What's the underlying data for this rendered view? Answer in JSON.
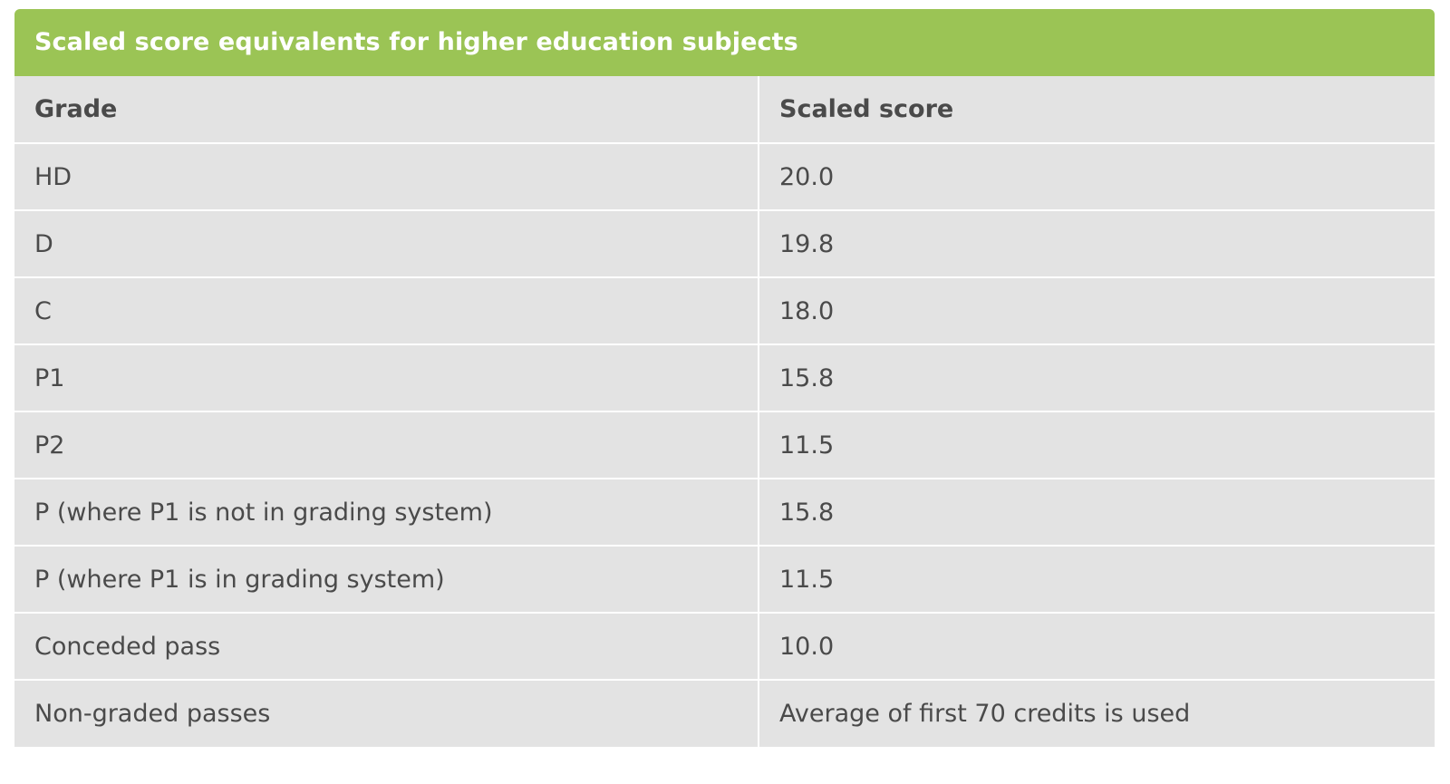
{
  "caption": "Scaled score equivalents for higher education subjects",
  "headers": [
    "Grade",
    "Scaled score"
  ],
  "rows": [
    [
      "HD",
      "20.0"
    ],
    [
      "D",
      "19.8"
    ],
    [
      "C",
      "18.0"
    ],
    [
      "P1",
      "15.8"
    ],
    [
      "P2",
      "11.5"
    ],
    [
      "P (where P1 is not in grading system)",
      "15.8"
    ],
    [
      "P (where P1 is in grading system)",
      "11.5"
    ],
    [
      "Conceded pass",
      "10.0"
    ],
    [
      "Non-graded passes",
      "Average of first 70 credits is used"
    ]
  ],
  "colors": {
    "caption_bg": "#9bc455",
    "cell_bg": "#e3e3e3",
    "text": "#4a4a4a"
  }
}
